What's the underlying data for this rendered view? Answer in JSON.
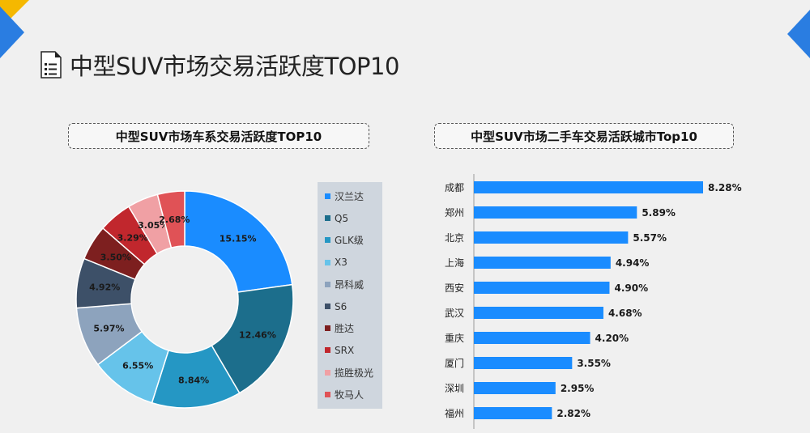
{
  "page": {
    "title": "中型SUV市场交易活跃度TOP10",
    "icons": [
      "document-list-icon"
    ],
    "accent_colors": {
      "yellow": "#f5b800",
      "blue": "#2a7de1"
    }
  },
  "chart_data": [
    {
      "type": "pie",
      "variant": "donut",
      "title": "中型SUV市场车系交易活跃度TOP10",
      "categories": [
        "汉兰达",
        "Q5",
        "GLK级",
        "X3",
        "昂科威",
        "S6",
        "胜达",
        "SRX",
        "揽胜极光",
        "牧马人"
      ],
      "values": [
        15.15,
        12.46,
        8.84,
        6.55,
        5.97,
        4.92,
        3.5,
        3.29,
        3.05,
        2.68
      ],
      "labels": [
        "15.15%",
        "12.46%",
        "8.84%",
        "6.55%",
        "5.97%",
        "4.92%",
        "3.50%",
        "3.29%",
        "3.05%",
        "2.68%"
      ],
      "colors": [
        "#1a8cff",
        "#1c6e8c",
        "#2597c4",
        "#66c3ea",
        "#8da3bd",
        "#3d5068",
        "#7d1f1f",
        "#c1272d",
        "#f0a0a4",
        "#e05256"
      ],
      "legend_position": "right"
    },
    {
      "type": "bar",
      "orientation": "horizontal",
      "title": "中型SUV市场二手车交易活跃城市Top10",
      "categories": [
        "成都",
        "郑州",
        "北京",
        "上海",
        "西安",
        "武汉",
        "重庆",
        "厦门",
        "深圳",
        "福州"
      ],
      "values": [
        8.28,
        5.89,
        5.57,
        4.94,
        4.9,
        4.68,
        4.2,
        3.55,
        2.95,
        2.82
      ],
      "labels": [
        "8.28%",
        "5.89%",
        "5.57%",
        "4.94%",
        "4.90%",
        "4.68%",
        "4.20%",
        "3.55%",
        "2.95%",
        "2.82%"
      ],
      "color": "#1a8cff",
      "grid": false
    }
  ]
}
